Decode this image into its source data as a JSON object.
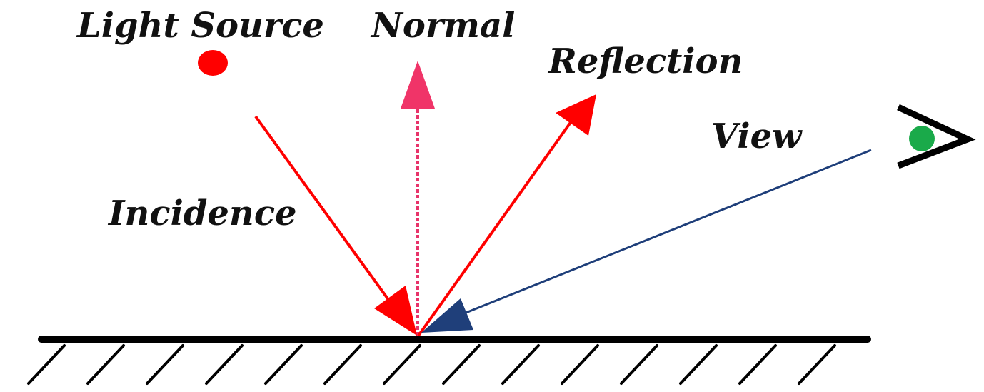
{
  "labels": {
    "light_source": "Light Source",
    "normal": "Normal",
    "reflection": "Reflection",
    "view": "View",
    "incidence": "Incidence"
  },
  "colors": {
    "incidence": "#ff0000",
    "reflection": "#ff0000",
    "normal": "#e8336a",
    "view": "#1f3f7a",
    "light_source": "#ff0000",
    "eye_pupil": "#1aaa4a",
    "surface": "#000000",
    "text": "#111111"
  },
  "icons": {
    "light_source": "red-dot-icon",
    "eye": "eye-icon"
  }
}
